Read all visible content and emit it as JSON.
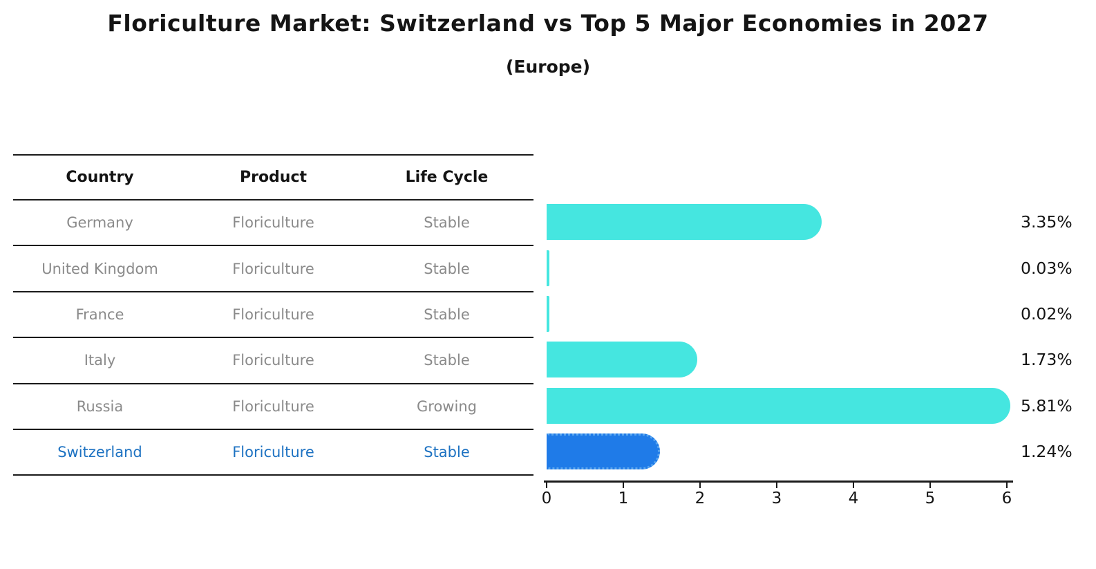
{
  "title": "Floriculture Market: Switzerland vs Top 5 Major Economies in 2027",
  "subtitle": "(Europe)",
  "table": {
    "headers": [
      "Country",
      "Product",
      "Life Cycle"
    ],
    "rows": [
      {
        "country": "Germany",
        "product": "Floriculture",
        "life_cycle": "Stable",
        "highlight": false
      },
      {
        "country": "United Kingdom",
        "product": "Floriculture",
        "life_cycle": "Stable",
        "highlight": false
      },
      {
        "country": "France",
        "product": "Floriculture",
        "life_cycle": "Stable",
        "highlight": false
      },
      {
        "country": "Italy",
        "product": "Floriculture",
        "life_cycle": "Stable",
        "highlight": false
      },
      {
        "country": "Russia",
        "product": "Floriculture",
        "life_cycle": "Growing",
        "highlight": false
      },
      {
        "country": "Switzerland",
        "product": "Floriculture",
        "life_cycle": "Stable",
        "highlight": true
      }
    ]
  },
  "chart_data": {
    "type": "bar",
    "orientation": "horizontal",
    "title": "Floriculture Market: Switzerland vs Top 5 Major Economies in 2027 (Europe)",
    "categories": [
      "Germany",
      "United Kingdom",
      "France",
      "Italy",
      "Russia",
      "Switzerland"
    ],
    "values": [
      3.35,
      0.03,
      0.02,
      1.73,
      5.81,
      1.24
    ],
    "value_labels": [
      "3.35%",
      "0.03%",
      "0.02%",
      "1.73%",
      "5.81%",
      "1.24%"
    ],
    "xlabel": "",
    "ylabel": "",
    "xlim": [
      0,
      6
    ],
    "x_ticks": [
      0,
      1,
      2,
      3,
      4,
      5,
      6
    ],
    "grid": false,
    "legend": false,
    "bar_color": "#45e6e0",
    "highlight_color": "#1f7be8",
    "highlight_index": 5
  },
  "colors": {
    "bar_cyan": "#45e6e0",
    "bar_blue": "#1f7be8",
    "highlight_text": "#1d72c2",
    "body_text": "#8a8a8a",
    "heading_text": "#141414"
  }
}
